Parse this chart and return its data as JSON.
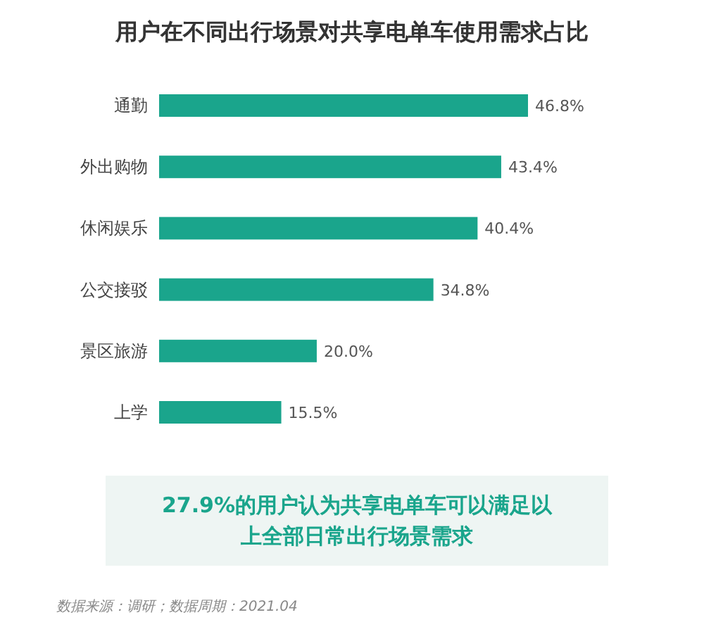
{
  "chart_data": {
    "type": "bar",
    "orientation": "horizontal",
    "title": "用户在不同出行场景对共享电单车使用需求占比",
    "categories": [
      "通勤",
      "外出购物",
      "休闲娱乐",
      "公交接驳",
      "景区旅游",
      "上学"
    ],
    "values": [
      46.8,
      43.4,
      40.4,
      34.8,
      20.0,
      15.5
    ],
    "value_labels": [
      "46.8%",
      "43.4%",
      "40.4%",
      "34.8%",
      "20.0%",
      "15.5%"
    ],
    "color": "#1aa58c",
    "annotations": [
      "27.9%的用户认为共享电单车可以满足以上全部日常出行场景需求",
      "数据来源：调研；数据周期：2021.04"
    ]
  }
}
